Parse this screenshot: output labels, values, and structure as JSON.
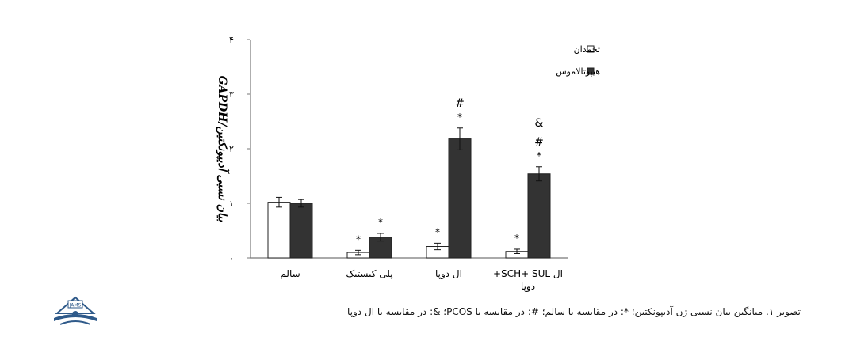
{
  "chart_data": {
    "type": "bar",
    "ylabel": "بیان نسبی آدیپونکتین/GAPDH",
    "ylim": [
      0,
      4
    ],
    "yticks": [
      {
        "value": 0,
        "label": "۰"
      },
      {
        "value": 1,
        "label": "۱"
      },
      {
        "value": 2,
        "label": "۲"
      },
      {
        "value": 3,
        "label": "۳"
      },
      {
        "value": 4,
        "label": "۴"
      }
    ],
    "categories": [
      {
        "lines": [
          "سالم"
        ]
      },
      {
        "lines": [
          "پلی کیستیک"
        ]
      },
      {
        "lines": [
          "ال دوپا"
        ]
      },
      {
        "lines": [
          "ال SCH+ SUL+",
          "دوپا"
        ]
      }
    ],
    "series": [
      {
        "name": "تخمدان",
        "color": "#ffffff",
        "values": [
          1.02,
          0.1,
          0.21,
          0.12
        ],
        "errors": [
          0.09,
          0.04,
          0.06,
          0.04
        ],
        "annotations": [
          [],
          [
            "*"
          ],
          [
            "*"
          ],
          [
            "*"
          ]
        ]
      },
      {
        "name": "هیپوتالاموس",
        "color": "#333333",
        "values": [
          1.0,
          0.38,
          2.18,
          1.54
        ],
        "errors": [
          0.07,
          0.07,
          0.2,
          0.13
        ],
        "annotations": [
          [],
          [
            "*"
          ],
          [
            "*",
            "#"
          ],
          [
            "*",
            "#",
            "&"
          ]
        ]
      }
    ],
    "legend_position": "top-right",
    "grid": false
  },
  "caption": "تصویر ۱. میانگین بیان نسبی ژن آدیپونکتین؛ *: در مقایسه با سالم؛ #: در مقایسه با PCOS؛ &: در مقایسه با ال دوپا",
  "logo_text": "JAMS"
}
